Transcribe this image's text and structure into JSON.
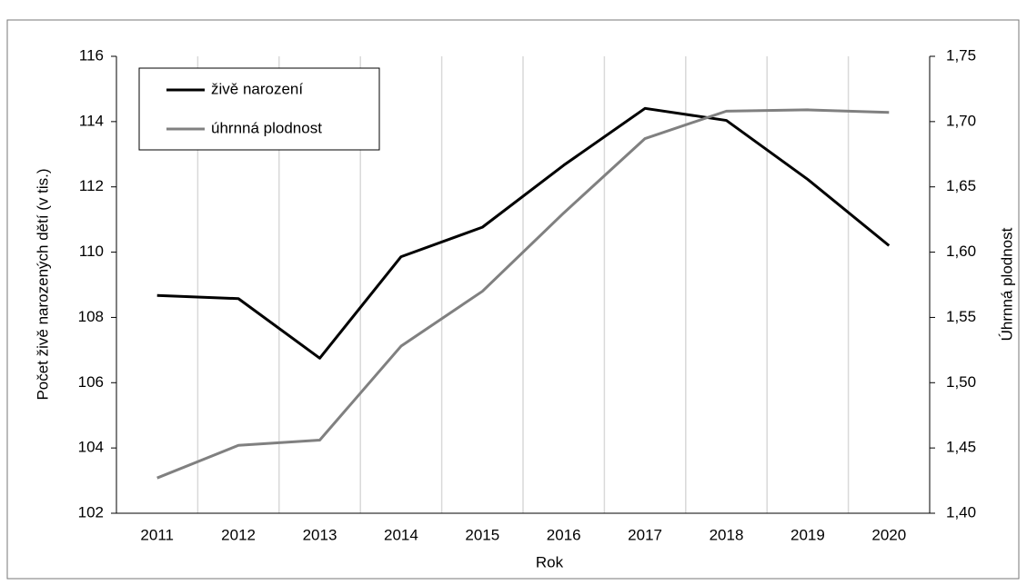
{
  "chart_data": {
    "type": "line",
    "categories": [
      "2011",
      "2012",
      "2013",
      "2014",
      "2015",
      "2016",
      "2017",
      "2018",
      "2019",
      "2020"
    ],
    "series": [
      {
        "name": "živě narození",
        "color": "#000000",
        "values": [
          108.673,
          108.576,
          106.751,
          109.86,
          110.764,
          112.663,
          114.405,
          114.036,
          112.231,
          110.2
        ]
      },
      {
        "name": "úhrnná plodnost",
        "color": "#808080",
        "axis": "y2",
        "values": [
          1.427,
          1.452,
          1.456,
          1.528,
          1.57,
          1.63,
          1.687,
          1.708,
          1.709,
          1.707
        ]
      }
    ],
    "ylabel": "Počet živě narozených dětí (v tis.)",
    "y2label": "Úhrnná plodnost",
    "xlabel": "Rok",
    "ylim": [
      102,
      116
    ],
    "yticks": [
      102,
      104,
      106,
      108,
      110,
      112,
      114,
      116
    ],
    "y2lim": [
      1.4,
      1.75
    ],
    "y2ticks": [
      {
        "value": 1.4,
        "label": "1,40"
      },
      {
        "value": 1.45,
        "label": "1,45"
      },
      {
        "value": 1.5,
        "label": "1,50"
      },
      {
        "value": 1.55,
        "label": "1,55"
      },
      {
        "value": 1.6,
        "label": "1,60"
      },
      {
        "value": 1.65,
        "label": "1,65"
      },
      {
        "value": 1.7,
        "label": "1,70"
      },
      {
        "value": 1.75,
        "label": "1,75"
      }
    ],
    "grid": true,
    "legend": "upper left"
  }
}
